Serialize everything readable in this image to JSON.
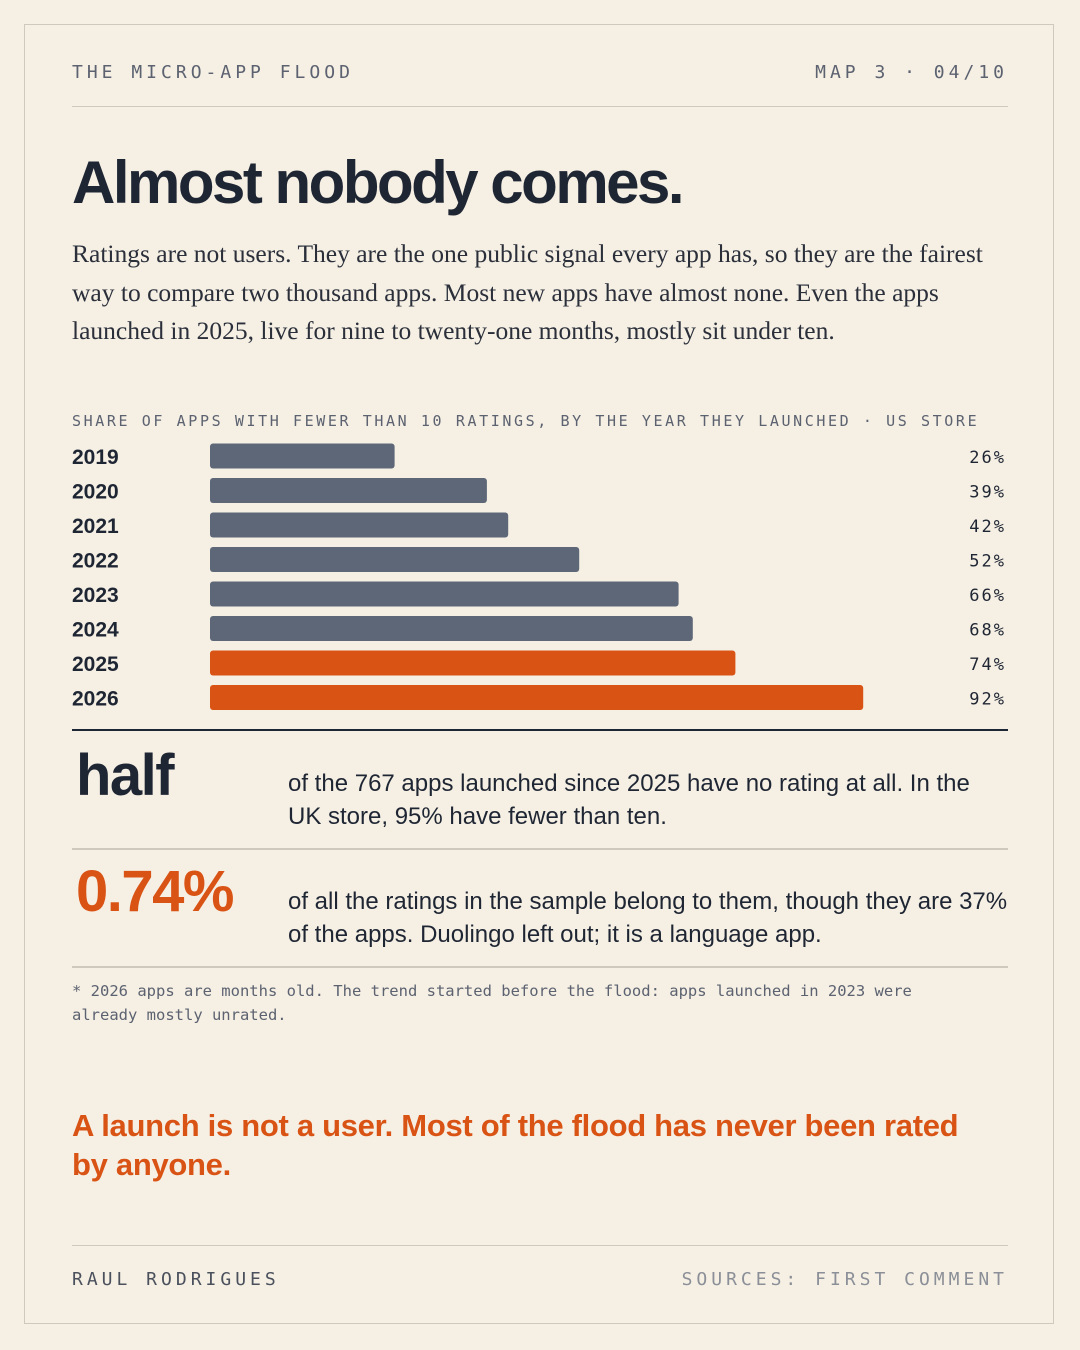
{
  "header": {
    "series_title": "THE MICRO-APP FLOOD",
    "page_marker": "MAP 3 · 04/10"
  },
  "title": "Almost nobody comes.",
  "intro": "Ratings are not users. They are the one public signal every app has, so they are the fairest way to compare two thousand apps. Most new apps have almost none. Even the apps launched in 2025, live for nine to twenty-one months, mostly sit under ten.",
  "chart_data": {
    "type": "bar",
    "orientation": "horizontal",
    "title": "SHARE OF APPS WITH FEWER THAN 10 RATINGS, BY THE YEAR THEY LAUNCHED · US STORE",
    "categories": [
      "2019",
      "2020",
      "2021",
      "2022",
      "2023",
      "2024",
      "2025",
      "2026"
    ],
    "values": [
      26,
      39,
      42,
      52,
      66,
      68,
      74,
      92
    ],
    "value_labels": [
      "26%",
      "39%",
      "42%",
      "52%",
      "66%",
      "68%",
      "74%",
      "92%"
    ],
    "xlim": [
      0,
      100
    ],
    "grid": false,
    "colors": [
      "#5d6778",
      "#5d6778",
      "#5d6778",
      "#5d6778",
      "#5d6778",
      "#5d6778",
      "#d95314",
      "#d95314"
    ]
  },
  "stats": [
    {
      "value": "half",
      "text": "of the 767 apps launched since 2025 have no rating at all. In the UK store, 95% have fewer than ten.",
      "color": "#1f2633"
    },
    {
      "value": "0.74%",
      "text": "of all the ratings in the sample belong to them, though they are 37% of the apps. Duolingo left out; it is a language app.",
      "color": "#d95314"
    }
  ],
  "footnote": "* 2026 apps are months old. The trend started before the flood: apps launched in 2023 were already mostly unrated.",
  "conclusion": "A launch is not a user. Most of the flood has never been rated by anyone.",
  "footer": {
    "author": "RAUL RODRIGUES",
    "sources": "SOURCES: FIRST COMMENT"
  },
  "colors": {
    "background": "#f5efe4",
    "ink": "#1f2633",
    "accent": "#d95314",
    "bar_gray": "#5d6778",
    "muted": "#5c6270"
  }
}
